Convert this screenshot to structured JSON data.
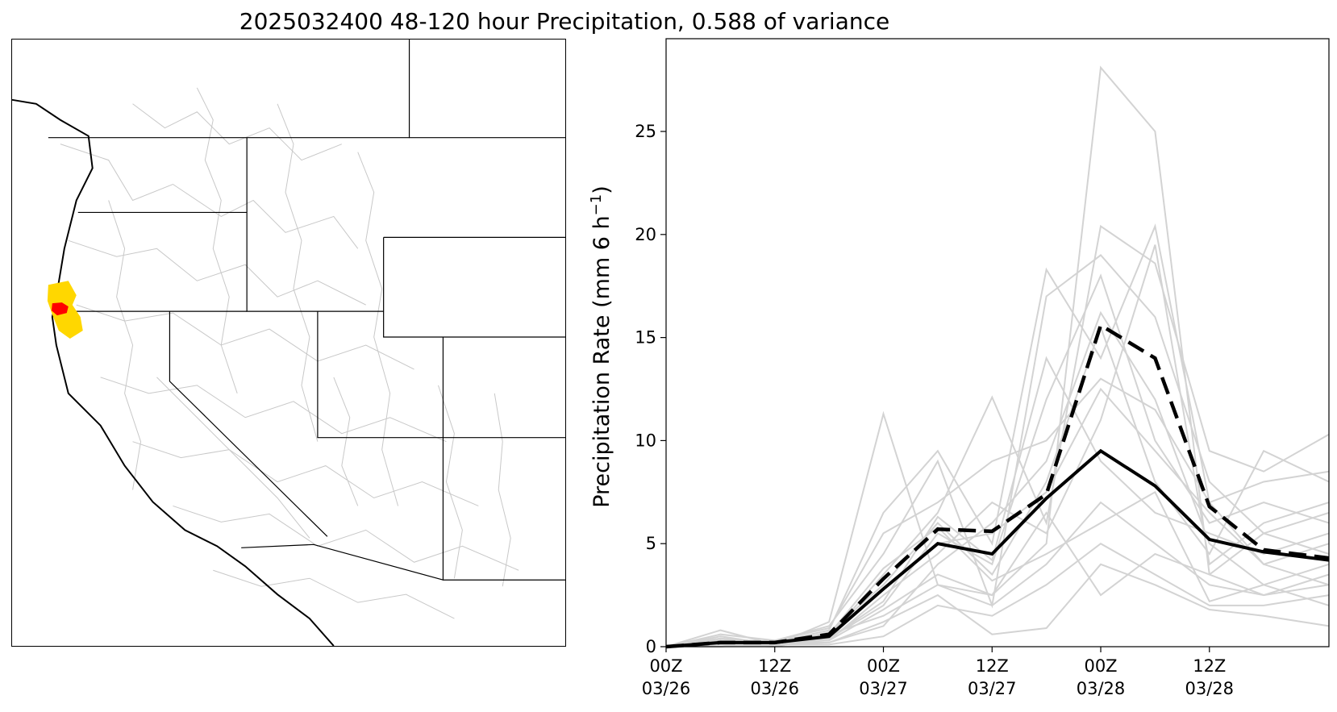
{
  "title": "2025032400 48-120 hour Precipitation, 0.588 of variance",
  "map": {
    "highlight_colors": {
      "primary": "#ffd700",
      "core": "#ff0000"
    },
    "boundary_color": "#000000",
    "basin_color": "#c8c8c8"
  },
  "chart_data": {
    "type": "line",
    "ylabel": "Precipitation Rate (mm 6 h",
    "ylabel_sup": "−1",
    "ylabel_close": ")",
    "ylim": [
      0,
      29.5
    ],
    "xlim": [
      0,
      18.3
    ],
    "y_ticks": [
      0,
      5,
      10,
      15,
      20,
      25
    ],
    "x_ticks": [
      {
        "x": 0,
        "line1": "00Z",
        "line2": "03/26"
      },
      {
        "x": 3,
        "line1": "12Z",
        "line2": "03/26"
      },
      {
        "x": 6,
        "line1": "00Z",
        "line2": "03/27"
      },
      {
        "x": 9,
        "line1": "12Z",
        "line2": "03/27"
      },
      {
        "x": 12,
        "line1": "00Z",
        "line2": "03/28"
      },
      {
        "x": 15,
        "line1": "12Z",
        "line2": "03/28"
      }
    ],
    "x": [
      0,
      1.5,
      3,
      4.5,
      6,
      7.5,
      9,
      10.5,
      12,
      13.5,
      15,
      16.5,
      18.3
    ],
    "mean_series": {
      "style": "solid",
      "color": "#000000",
      "values": [
        0,
        0.2,
        0.2,
        0.5,
        2.8,
        5.0,
        4.5,
        7.2,
        9.5,
        7.8,
        5.2,
        4.6,
        4.2
      ]
    },
    "weighted_series": {
      "style": "dashed",
      "color": "#000000",
      "values": [
        0,
        0.2,
        0.2,
        0.6,
        3.3,
        5.7,
        5.6,
        7.4,
        15.6,
        14.0,
        6.8,
        4.7,
        4.3
      ]
    },
    "member_color": "#d3d3d3",
    "members": [
      [
        0,
        0.8,
        0.1,
        1.2,
        11.3,
        3.0,
        2.5,
        5.0,
        28.1,
        25.0,
        3.5,
        2.5,
        3.0
      ],
      [
        0,
        0.3,
        0.2,
        0.8,
        6.5,
        9.5,
        5.0,
        18.3,
        14.0,
        20.4,
        7.0,
        4.0,
        5.0
      ],
      [
        0,
        0.1,
        0.0,
        0.5,
        3.5,
        6.5,
        12.1,
        6.0,
        20.4,
        18.6,
        9.5,
        8.5,
        10.3
      ],
      [
        0,
        0.2,
        0.3,
        1.0,
        4.5,
        9.0,
        2.0,
        17.0,
        19.0,
        16.0,
        8.0,
        5.5,
        6.5
      ],
      [
        0,
        0.5,
        0.1,
        0.4,
        2.0,
        5.5,
        4.0,
        12.0,
        18.0,
        10.0,
        6.0,
        7.0,
        6.0
      ],
      [
        0,
        0.0,
        0.2,
        0.2,
        1.0,
        4.0,
        6.0,
        9.0,
        16.2,
        12.0,
        5.0,
        3.0,
        4.0
      ],
      [
        0,
        0.3,
        0.1,
        0.7,
        3.0,
        6.0,
        3.5,
        8.0,
        15.5,
        8.0,
        4.5,
        9.5,
        8.0
      ],
      [
        0,
        0.4,
        0.2,
        0.3,
        2.5,
        4.5,
        7.0,
        5.5,
        11.0,
        19.5,
        4.0,
        6.0,
        7.0
      ],
      [
        0,
        0.1,
        0.0,
        0.6,
        1.5,
        3.0,
        2.0,
        4.0,
        7.0,
        5.0,
        3.0,
        2.5,
        3.5
      ],
      [
        0,
        0.2,
        0.1,
        0.1,
        0.5,
        2.0,
        1.5,
        3.0,
        5.0,
        3.5,
        2.0,
        2.0,
        2.5
      ],
      [
        0,
        0.6,
        0.3,
        0.9,
        5.5,
        7.0,
        9.0,
        10.0,
        13.0,
        11.5,
        7.0,
        8.0,
        8.5
      ],
      [
        0,
        0.2,
        0.2,
        0.4,
        2.2,
        6.3,
        4.2,
        14.0,
        9.0,
        6.5,
        5.5,
        4.5,
        5.5
      ],
      [
        0,
        0.1,
        0.1,
        0.2,
        1.2,
        2.5,
        0.6,
        0.9,
        4.0,
        3.0,
        1.8,
        1.5,
        1.0
      ],
      [
        0,
        0.3,
        0.0,
        0.5,
        2.8,
        5.0,
        5.5,
        7.5,
        12.5,
        9.5,
        6.5,
        4.0,
        3.0
      ],
      [
        0,
        0.2,
        0.2,
        0.3,
        1.8,
        3.5,
        2.5,
        6.5,
        2.5,
        4.5,
        3.5,
        5.5,
        4.5
      ],
      [
        0,
        0.4,
        0.1,
        0.6,
        3.8,
        5.8,
        3.2,
        4.5,
        6.0,
        7.5,
        2.2,
        3.0,
        2.0
      ]
    ]
  }
}
